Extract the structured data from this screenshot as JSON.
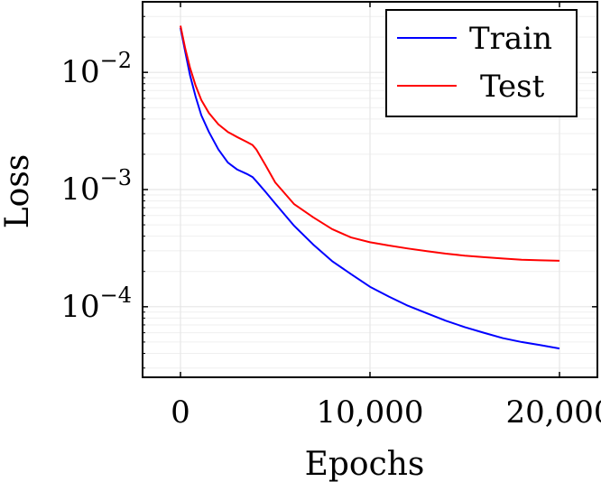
{
  "chart_data": {
    "type": "line",
    "title": "",
    "xlabel": "Epochs",
    "ylabel": "Loss",
    "yscale": "log",
    "xlim": [
      -2000,
      22000
    ],
    "ylim": [
      2.5e-05,
      0.04
    ],
    "x_ticks": [
      0,
      10000,
      20000
    ],
    "x_tick_labels": [
      "0",
      "10,000",
      "20,000"
    ],
    "y_ticks": [
      0.0001,
      0.001,
      0.01
    ],
    "y_tick_labels": [
      {
        "base": "10",
        "exp": "−4"
      },
      {
        "base": "10",
        "exp": "−3"
      },
      {
        "base": "10",
        "exp": "−2"
      }
    ],
    "grid": true,
    "legend_position": "top-right",
    "series": [
      {
        "name": "Train",
        "color": "#0000ff",
        "x": [
          0,
          250,
          500,
          800,
          1100,
          1500,
          2000,
          2500,
          3000,
          3500,
          3800,
          4000,
          4500,
          5000,
          6000,
          7000,
          8000,
          9000,
          10000,
          11000,
          12000,
          13000,
          14000,
          15000,
          16000,
          17000,
          18000,
          19000,
          20000
        ],
        "values": [
          0.024,
          0.015,
          0.0095,
          0.0062,
          0.0043,
          0.0031,
          0.0022,
          0.0017,
          0.00148,
          0.00136,
          0.00128,
          0.00118,
          0.00095,
          0.00076,
          0.00049,
          0.00034,
          0.000245,
          0.00019,
          0.000148,
          0.000122,
          0.000102,
          8.8e-05,
          7.6e-05,
          6.7e-05,
          6e-05,
          5.4e-05,
          5e-05,
          4.7e-05,
          4.4e-05
        ]
      },
      {
        "name": "Test",
        "color": "#ff0000",
        "x": [
          0,
          250,
          500,
          800,
          1100,
          1500,
          2000,
          2500,
          3000,
          3500,
          3800,
          4000,
          4500,
          5000,
          6000,
          7000,
          8000,
          9000,
          10000,
          11000,
          12000,
          13000,
          14000,
          15000,
          16000,
          17000,
          18000,
          19000,
          20000
        ],
        "values": [
          0.025,
          0.016,
          0.011,
          0.0077,
          0.0058,
          0.0045,
          0.0036,
          0.0031,
          0.0028,
          0.00255,
          0.0024,
          0.0022,
          0.0016,
          0.00115,
          0.00075,
          0.00058,
          0.00046,
          0.00039,
          0.000355,
          0.000333,
          0.000314,
          0.000298,
          0.000284,
          0.000273,
          0.000265,
          0.000258,
          0.000252,
          0.000249,
          0.000247
        ]
      }
    ]
  }
}
